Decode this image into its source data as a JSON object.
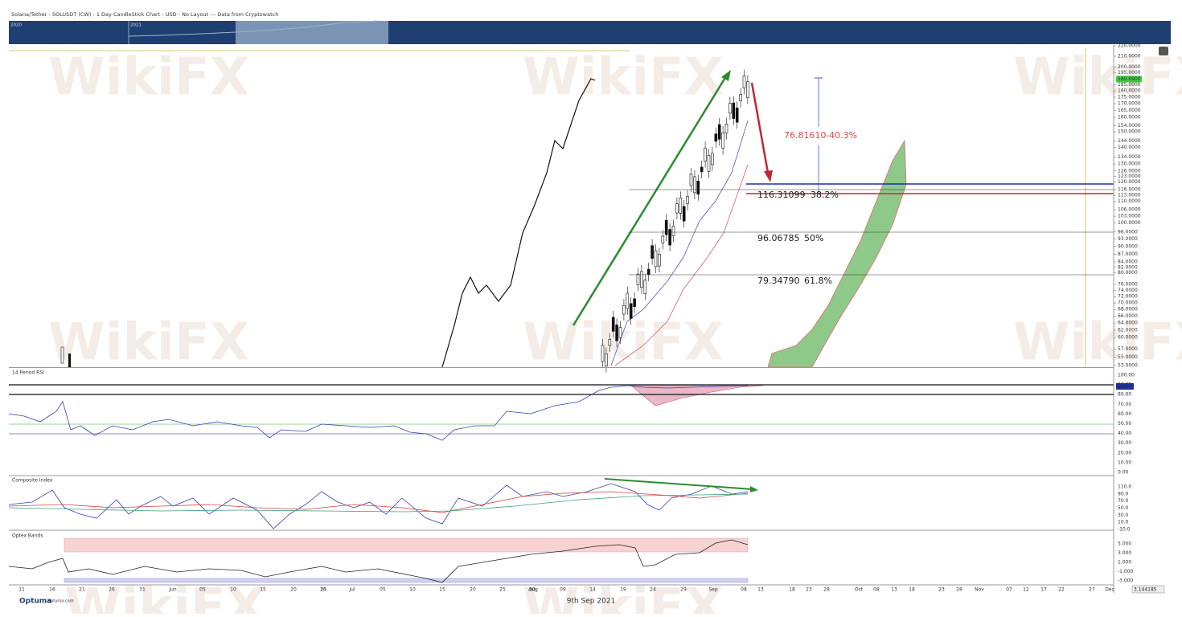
{
  "header": {
    "title": "Solana/Tether - SOLUSDT (CW) - 1 Day CandleStick Chart - USD - No Layout --- Data from Cryptowatch"
  },
  "overview": {
    "labels": [
      "2020",
      "2021"
    ]
  },
  "watermark": "WikiFX",
  "price_pane": {
    "axis_labels": [
      "220.0000",
      "210.0000",
      "200.0000",
      "195.0000",
      "185.0000",
      "180.0000",
      "175.0000",
      "170.0000",
      "165.0000",
      "160.0000",
      "154.0000",
      "150.0000",
      "144.0000",
      "140.0000",
      "134.0000",
      "130.0000",
      "126.0000",
      "123.0000",
      "120.0000",
      "116.0000",
      "113.0000",
      "110.0000",
      "106.0000",
      "103.0000",
      "100.0000",
      "96.0000",
      "93.0000",
      "90.0000",
      "87.0000",
      "84.0000",
      "82.0000",
      "80.0000",
      "76.0000",
      "74.0000",
      "72.0000",
      "70.0000",
      "68.0000",
      "66.0000",
      "64.0000",
      "62.0000",
      "60.0000",
      "57.0000",
      "55.0000",
      "53.0000"
    ],
    "current_price": "189.6900",
    "measure": {
      "value": "76.81610",
      "percent": "-40.3%"
    },
    "fib_levels": [
      {
        "price": "116.31099",
        "ratio": "38.2%"
      },
      {
        "price": "96.06785",
        "ratio": "50%"
      },
      {
        "price": "79.34790",
        "ratio": "61.8%"
      }
    ]
  },
  "rsi_pane": {
    "title": "14 Period RSI",
    "axis_labels": [
      "100.00",
      "90.00",
      "80.00",
      "70.00",
      "60.00",
      "50.00",
      "40.00",
      "30.00",
      "20.00",
      "10.00",
      "0.00"
    ],
    "current": "88.46"
  },
  "composite_pane": {
    "title": "Composite Index",
    "axis_labels": [
      "110.0",
      "90.0",
      "70.0",
      "50.0",
      "30.0",
      "10.0",
      "-10.0"
    ]
  },
  "optex_pane": {
    "title": "Optex Bands",
    "axis_labels": [
      "5.000",
      "3.000",
      "1.000",
      "-1.000",
      "-3.000"
    ]
  },
  "x_axis": {
    "labels": [
      "11",
      "16",
      "21",
      "26",
      "31",
      "Jun",
      "05",
      "10",
      "15",
      "20",
      "25",
      "30",
      "Jul",
      "05",
      "10",
      "15",
      "20",
      "25",
      "30",
      "Aug",
      "09",
      "14",
      "19",
      "24",
      "29",
      "Sep",
      "08",
      "13",
      "18",
      "23",
      "28",
      "Oct",
      "08",
      "13",
      "18",
      "23",
      "28",
      "Nov",
      "07",
      "12",
      "17",
      "22",
      "27",
      "Dec"
    ]
  },
  "footer": {
    "logo": "Optuma",
    "site": "optuma.com",
    "date": "9th Sep 2021",
    "cursor_value": "3.144185"
  }
}
